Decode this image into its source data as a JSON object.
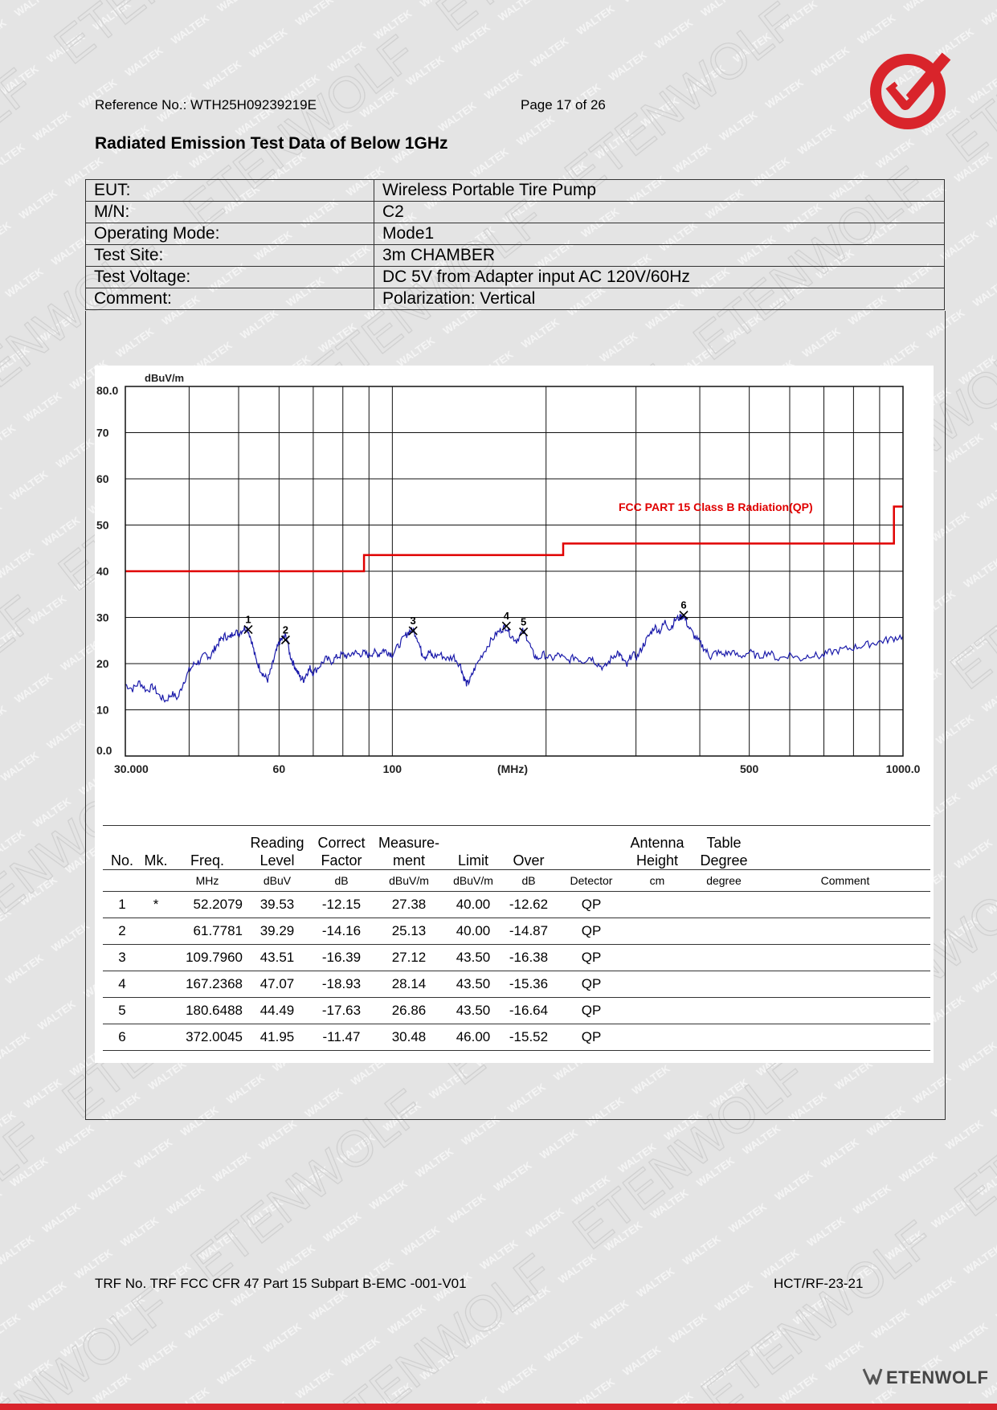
{
  "header": {
    "reference": "Reference No.: WTH25H09239219E",
    "page": "Page 17 of 26",
    "title": "Radiated Emission Test Data of Below 1GHz"
  },
  "info": [
    {
      "label": "EUT:",
      "value": "Wireless Portable Tire Pump"
    },
    {
      "label": "M/N:",
      "value": "C2"
    },
    {
      "label": "Operating Mode:",
      "value": "Mode1"
    },
    {
      "label": "Test Site:",
      "value": "3m CHAMBER"
    },
    {
      "label": "Test Voltage:",
      "value": "DC 5V from Adapter input AC 120V/60Hz"
    },
    {
      "label": "Comment:",
      "value": "Polarization: Vertical"
    }
  ],
  "chart_data": {
    "type": "line",
    "xscale": "log",
    "xlim": [
      30,
      1000
    ],
    "ylim": [
      0,
      80
    ],
    "ylabel": "dBuV/m",
    "xlabel": "(MHz)",
    "y_ticks": [
      "80.0",
      "70",
      "60",
      "50",
      "40",
      "30",
      "20",
      "10",
      "0.0"
    ],
    "x_tick_labels": [
      {
        "v": 30,
        "t": "30.000"
      },
      {
        "v": 60,
        "t": "60"
      },
      {
        "v": 100,
        "t": "100"
      },
      {
        "v": 500,
        "t": "500"
      },
      {
        "v": 1000,
        "t": "1000.0"
      }
    ],
    "limit_label": "FCC PART 15 Class B Radiation(QP)",
    "limit_color": "#e00000",
    "trace_color": "#1a1aaa",
    "series": [
      {
        "name": "FCC PART 15 Class B Radiation(QP)",
        "points": [
          [
            30,
            40.0
          ],
          [
            88,
            40.0
          ],
          [
            88,
            43.5
          ],
          [
            216,
            43.5
          ],
          [
            216,
            46.0
          ],
          [
            960,
            46.0
          ],
          [
            960,
            54.0
          ],
          [
            1000,
            54.0
          ]
        ]
      },
      {
        "points": [
          [
            30,
            15.5
          ],
          [
            31,
            14.5
          ],
          [
            32,
            16.0
          ],
          [
            33,
            14.2
          ],
          [
            34,
            15.0
          ],
          [
            35,
            13.0
          ],
          [
            36,
            12.0
          ],
          [
            37,
            13.5
          ],
          [
            38,
            12.5
          ],
          [
            39,
            16.0
          ],
          [
            40,
            18.5
          ],
          [
            41,
            20.0
          ],
          [
            42,
            20.5
          ],
          [
            43,
            22.0
          ],
          [
            44,
            21.5
          ],
          [
            45,
            23.5
          ],
          [
            46,
            25.0
          ],
          [
            47,
            26.0
          ],
          [
            48,
            25.5
          ],
          [
            49,
            27.0
          ],
          [
            50,
            26.5
          ],
          [
            51,
            27.5
          ],
          [
            52,
            27.8
          ],
          [
            53,
            25.0
          ],
          [
            54,
            21.0
          ],
          [
            55,
            19.0
          ],
          [
            56,
            17.5
          ],
          [
            57,
            16.5
          ],
          [
            58,
            19.0
          ],
          [
            59,
            22.0
          ],
          [
            60,
            24.5
          ],
          [
            61,
            25.5
          ],
          [
            62,
            26.0
          ],
          [
            63,
            22.0
          ],
          [
            64,
            20.0
          ],
          [
            65,
            18.5
          ],
          [
            66,
            17.0
          ],
          [
            67,
            16.5
          ],
          [
            68,
            18.0
          ],
          [
            69,
            19.0
          ],
          [
            70,
            18.0
          ],
          [
            72,
            19.5
          ],
          [
            74,
            21.0
          ],
          [
            76,
            20.5
          ],
          [
            78,
            21.5
          ],
          [
            80,
            22.0
          ],
          [
            82,
            21.5
          ],
          [
            84,
            22.5
          ],
          [
            86,
            22.0
          ],
          [
            88,
            22.3
          ],
          [
            90,
            21.8
          ],
          [
            92,
            22.5
          ],
          [
            94,
            22.0
          ],
          [
            96,
            23.0
          ],
          [
            98,
            22.5
          ],
          [
            100,
            22.0
          ],
          [
            103,
            24.0
          ],
          [
            106,
            26.0
          ],
          [
            108,
            27.0
          ],
          [
            110,
            27.3
          ],
          [
            112,
            25.5
          ],
          [
            114,
            22.5
          ],
          [
            116,
            21.5
          ],
          [
            118,
            22.5
          ],
          [
            120,
            21.5
          ],
          [
            124,
            22.0
          ],
          [
            128,
            21.0
          ],
          [
            132,
            21.5
          ],
          [
            136,
            19.5
          ],
          [
            138,
            17.0
          ],
          [
            140,
            15.5
          ],
          [
            142,
            16.5
          ],
          [
            145,
            19.0
          ],
          [
            150,
            22.0
          ],
          [
            155,
            24.5
          ],
          [
            160,
            26.5
          ],
          [
            164,
            27.5
          ],
          [
            167,
            28.0
          ],
          [
            171,
            26.0
          ],
          [
            175,
            25.0
          ],
          [
            180,
            27.0
          ],
          [
            184,
            25.5
          ],
          [
            188,
            22.5
          ],
          [
            192,
            21.0
          ],
          [
            198,
            22.0
          ],
          [
            205,
            21.0
          ],
          [
            212,
            22.0
          ],
          [
            220,
            20.5
          ],
          [
            228,
            21.5
          ],
          [
            236,
            20.5
          ],
          [
            244,
            21.5
          ],
          [
            252,
            20.0
          ],
          [
            260,
            19.0
          ],
          [
            268,
            21.0
          ],
          [
            276,
            22.5
          ],
          [
            282,
            21.0
          ],
          [
            288,
            19.5
          ],
          [
            294,
            22.0
          ],
          [
            302,
            21.5
          ],
          [
            310,
            24.0
          ],
          [
            318,
            26.0
          ],
          [
            326,
            28.0
          ],
          [
            334,
            27.0
          ],
          [
            342,
            29.0
          ],
          [
            350,
            27.5
          ],
          [
            358,
            29.5
          ],
          [
            366,
            30.0
          ],
          [
            372,
            30.4
          ],
          [
            380,
            28.0
          ],
          [
            390,
            26.0
          ],
          [
            400,
            24.5
          ],
          [
            410,
            23.0
          ],
          [
            420,
            21.5
          ],
          [
            430,
            22.5
          ],
          [
            445,
            22.0
          ],
          [
            460,
            22.5
          ],
          [
            480,
            21.5
          ],
          [
            500,
            22.5
          ],
          [
            520,
            21.5
          ],
          [
            545,
            22.5
          ],
          [
            570,
            21.0
          ],
          [
            600,
            22.0
          ],
          [
            630,
            21.0
          ],
          [
            660,
            22.0
          ],
          [
            690,
            21.5
          ],
          [
            720,
            22.5
          ],
          [
            760,
            23.0
          ],
          [
            800,
            23.5
          ],
          [
            840,
            24.0
          ],
          [
            880,
            24.5
          ],
          [
            920,
            25.0
          ],
          [
            960,
            25.5
          ],
          [
            1000,
            26.0
          ]
        ]
      }
    ],
    "markers": [
      {
        "n": "1",
        "x": 52.2079,
        "y": 27.38
      },
      {
        "n": "2",
        "x": 61.7781,
        "y": 25.13
      },
      {
        "n": "3",
        "x": 109.796,
        "y": 27.12
      },
      {
        "n": "4",
        "x": 167.2368,
        "y": 28.14
      },
      {
        "n": "5",
        "x": 180.6488,
        "y": 26.86
      },
      {
        "n": "6",
        "x": 372.0045,
        "y": 30.48
      }
    ]
  },
  "results": {
    "headers": [
      "No.",
      "Mk.",
      "Freq.",
      "Reading Level",
      "Correct Factor",
      "Measure- ment",
      "Limit",
      "Over",
      "",
      "Antenna Height",
      "Table Degree",
      ""
    ],
    "units": [
      "",
      "",
      "MHz",
      "dBuV",
      "dB",
      "dBuV/m",
      "dBuV/m",
      "dB",
      "Detector",
      "cm",
      "degree",
      "Comment"
    ],
    "rows": [
      [
        "1",
        "*",
        "52.2079",
        "39.53",
        "-12.15",
        "27.38",
        "40.00",
        "-12.62",
        "QP"
      ],
      [
        "2",
        "",
        "61.7781",
        "39.29",
        "-14.16",
        "25.13",
        "40.00",
        "-14.87",
        "QP"
      ],
      [
        "3",
        "",
        "109.7960",
        "43.51",
        "-16.39",
        "27.12",
        "43.50",
        "-16.38",
        "QP"
      ],
      [
        "4",
        "",
        "167.2368",
        "47.07",
        "-18.93",
        "28.14",
        "43.50",
        "-15.36",
        "QP"
      ],
      [
        "5",
        "",
        "180.6488",
        "44.49",
        "-17.63",
        "26.86",
        "43.50",
        "-16.64",
        "QP"
      ],
      [
        "6",
        "",
        "372.0045",
        "41.95",
        "-11.47",
        "30.48",
        "46.00",
        "-15.52",
        "QP"
      ]
    ]
  },
  "footer": {
    "trf": "TRF No. TRF FCC CFR 47 Part 15 Subpart B-EMC -001-V01",
    "code": "HCT/RF-23-21",
    "brand": "ETENWOLF"
  },
  "colors": {
    "accent_red": "#d9242b",
    "background": "#e4e4e4"
  }
}
